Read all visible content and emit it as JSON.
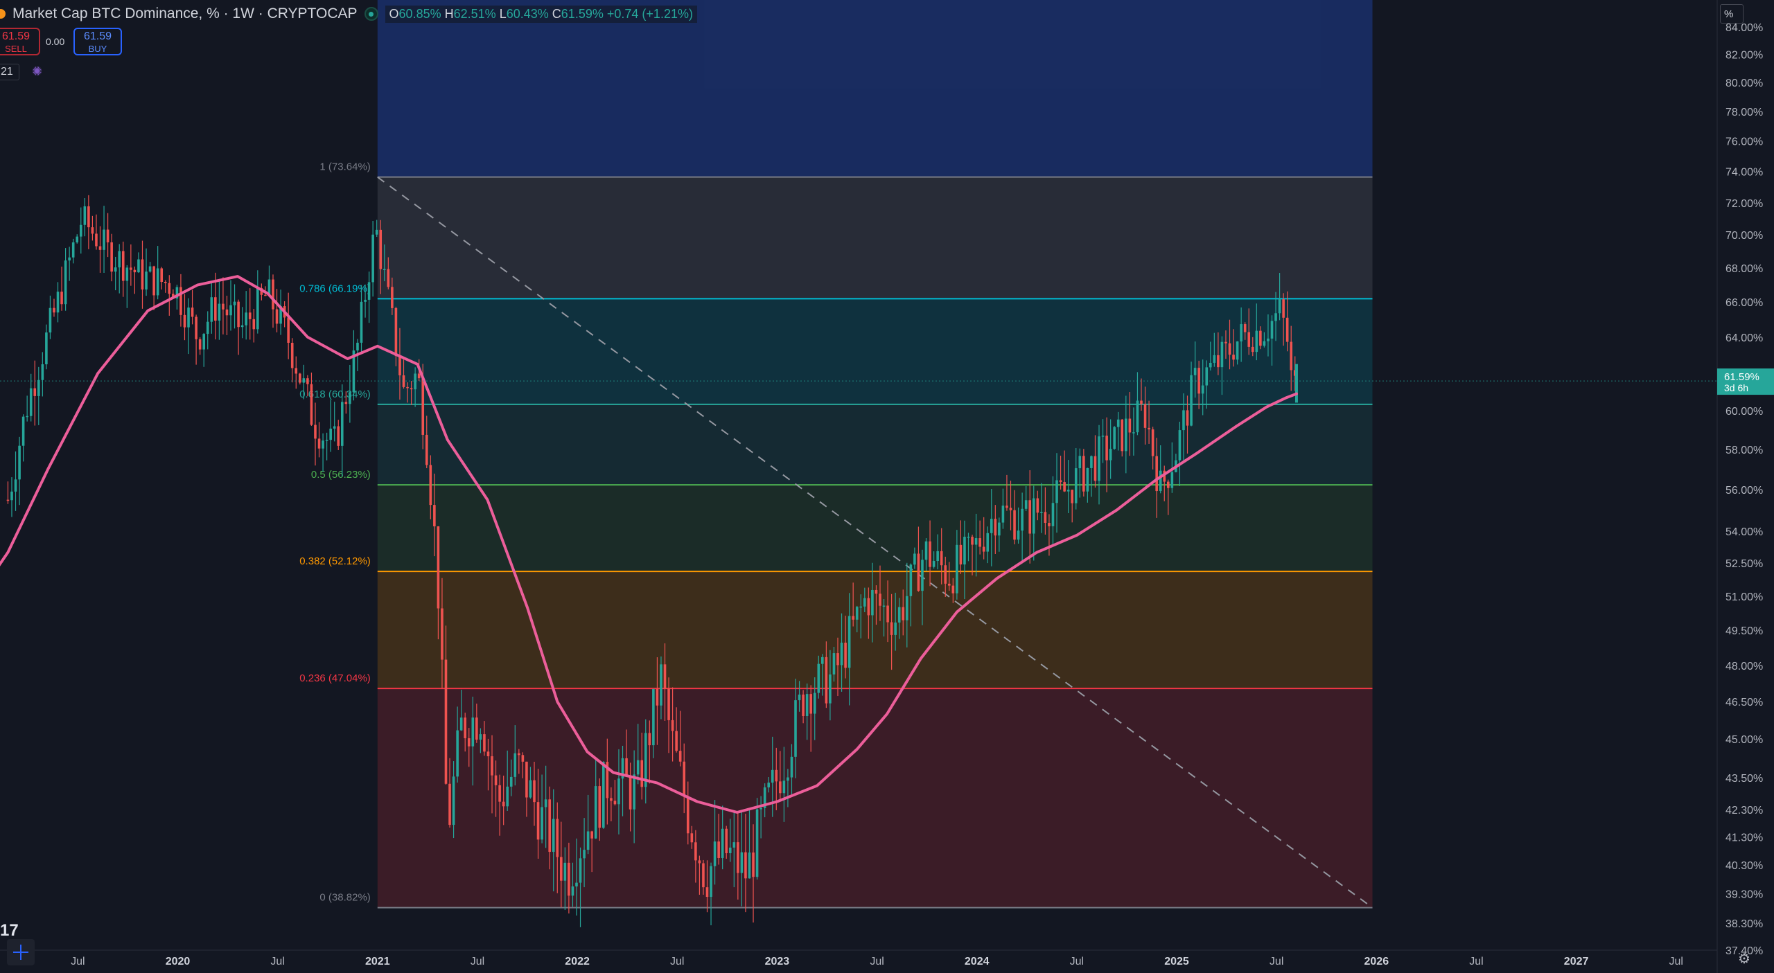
{
  "header": {
    "symbol_title": "Market Cap BTC Dominance, % · 1W · CRYPTOCAP",
    "ohlc": {
      "o_label": "O",
      "o": "60.85%",
      "h_label": "H",
      "h": "62.51%",
      "l_label": "L",
      "l": "60.43%",
      "c_label": "C",
      "c": "61.59%",
      "change": "+0.74 (+1.21%)"
    },
    "sell_price": "61.59",
    "sell_label": "SELL",
    "spread": "0.00",
    "buy_price": "61.59",
    "buy_label": "BUY",
    "indicator_value": "21",
    "scale_mode": "%"
  },
  "price_badge": {
    "value": "61.59%",
    "countdown": "3d 6h"
  },
  "colors": {
    "up": "#26a69a",
    "down": "#ef5350",
    "ma": "#ec5e9a",
    "price_line": "#26a69a"
  },
  "chart_data": {
    "type": "candlestick",
    "timeframe": "1W",
    "ylim": [
      37.4,
      86.0
    ],
    "y_scale": "log",
    "y_ticks": [
      "84.00%",
      "82.00%",
      "80.00%",
      "78.00%",
      "76.00%",
      "74.00%",
      "72.00%",
      "70.00%",
      "68.00%",
      "66.00%",
      "64.00%",
      "62.00%",
      "60.00%",
      "58.00%",
      "56.00%",
      "54.00%",
      "52.50%",
      "51.00%",
      "49.50%",
      "48.00%",
      "46.50%",
      "45.00%",
      "43.50%",
      "42.30%",
      "41.30%",
      "40.30%",
      "39.30%",
      "38.30%",
      "37.40%"
    ],
    "x_ticks": [
      {
        "label": "Jul",
        "t": 2019.5
      },
      {
        "label": "2020",
        "t": 2020.0
      },
      {
        "label": "Jul",
        "t": 2020.5
      },
      {
        "label": "2021",
        "t": 2021.0
      },
      {
        "label": "Jul",
        "t": 2021.5
      },
      {
        "label": "2022",
        "t": 2022.0
      },
      {
        "label": "Jul",
        "t": 2022.5
      },
      {
        "label": "2023",
        "t": 2023.0
      },
      {
        "label": "Jul",
        "t": 2023.5
      },
      {
        "label": "2024",
        "t": 2024.0
      },
      {
        "label": "Jul",
        "t": 2024.5
      },
      {
        "label": "2025",
        "t": 2025.0
      },
      {
        "label": "Jul",
        "t": 2025.5
      },
      {
        "label": "2026",
        "t": 2026.0
      },
      {
        "label": "Jul",
        "t": 2026.5
      },
      {
        "label": "2027",
        "t": 2027.0
      },
      {
        "label": "Jul",
        "t": 2027.5
      }
    ],
    "price_path": [
      [
        2019.15,
        55.5
      ],
      [
        2019.25,
        60.5
      ],
      [
        2019.4,
        66.0
      ],
      [
        2019.52,
        71.0
      ],
      [
        2019.65,
        69.0
      ],
      [
        2019.82,
        67.5
      ],
      [
        2019.98,
        67.0
      ],
      [
        2020.1,
        64.0
      ],
      [
        2020.2,
        66.0
      ],
      [
        2020.32,
        64.5
      ],
      [
        2020.45,
        66.5
      ],
      [
        2020.55,
        64.0
      ],
      [
        2020.68,
        59.5
      ],
      [
        2020.78,
        58.0
      ],
      [
        2020.9,
        63.5
      ],
      [
        2020.99,
        70.5
      ],
      [
        2021.04,
        67.0
      ],
      [
        2021.13,
        61.0
      ],
      [
        2021.2,
        62.0
      ],
      [
        2021.25,
        58.0
      ],
      [
        2021.3,
        52.0
      ],
      [
        2021.35,
        41.5
      ],
      [
        2021.42,
        45.5
      ],
      [
        2021.52,
        46.0
      ],
      [
        2021.6,
        42.5
      ],
      [
        2021.7,
        44.0
      ],
      [
        2021.82,
        42.0
      ],
      [
        2021.95,
        40.0
      ],
      [
        2022.04,
        41.5
      ],
      [
        2022.16,
        43.5
      ],
      [
        2022.3,
        43.0
      ],
      [
        2022.42,
        47.5
      ],
      [
        2022.47,
        45.0
      ],
      [
        2022.56,
        42.0
      ],
      [
        2022.64,
        40.0
      ],
      [
        2022.74,
        40.8
      ],
      [
        2022.85,
        40.0
      ],
      [
        2022.95,
        42.5
      ],
      [
        2023.05,
        44.5
      ],
      [
        2023.14,
        47.0
      ],
      [
        2023.28,
        47.5
      ],
      [
        2023.45,
        51.0
      ],
      [
        2023.6,
        50.0
      ],
      [
        2023.74,
        53.0
      ],
      [
        2023.86,
        52.0
      ],
      [
        2023.98,
        53.0
      ],
      [
        2024.1,
        55.0
      ],
      [
        2024.22,
        54.5
      ],
      [
        2024.4,
        55.5
      ],
      [
        2024.55,
        57.0
      ],
      [
        2024.7,
        58.5
      ],
      [
        2024.84,
        60.0
      ],
      [
        2024.92,
        56.0
      ],
      [
        2025.0,
        58.0
      ],
      [
        2025.09,
        61.5
      ],
      [
        2025.2,
        62.5
      ],
      [
        2025.32,
        64.0
      ],
      [
        2025.45,
        64.5
      ],
      [
        2025.52,
        65.5
      ],
      [
        2025.56,
        63.5
      ],
      [
        2025.58,
        60.8
      ],
      [
        2025.6,
        61.59
      ]
    ],
    "moving_average": [
      [
        2019.0,
        51.0
      ],
      [
        2019.15,
        53.0
      ],
      [
        2019.35,
        57.0
      ],
      [
        2019.6,
        62.0
      ],
      [
        2019.85,
        65.5
      ],
      [
        2020.1,
        67.0
      ],
      [
        2020.3,
        67.5
      ],
      [
        2020.45,
        66.5
      ],
      [
        2020.65,
        64.0
      ],
      [
        2020.85,
        62.8
      ],
      [
        2021.0,
        63.5
      ],
      [
        2021.2,
        62.5
      ],
      [
        2021.35,
        58.5
      ],
      [
        2021.55,
        55.5
      ],
      [
        2021.75,
        50.5
      ],
      [
        2021.9,
        46.5
      ],
      [
        2022.05,
        44.5
      ],
      [
        2022.18,
        43.7
      ],
      [
        2022.4,
        43.3
      ],
      [
        2022.6,
        42.6
      ],
      [
        2022.8,
        42.2
      ],
      [
        2023.0,
        42.6
      ],
      [
        2023.2,
        43.2
      ],
      [
        2023.4,
        44.6
      ],
      [
        2023.55,
        46.0
      ],
      [
        2023.72,
        48.3
      ],
      [
        2023.9,
        50.3
      ],
      [
        2024.1,
        51.8
      ],
      [
        2024.3,
        53.0
      ],
      [
        2024.5,
        53.8
      ],
      [
        2024.7,
        55.0
      ],
      [
        2024.9,
        56.5
      ],
      [
        2025.1,
        57.8
      ],
      [
        2025.3,
        59.2
      ],
      [
        2025.45,
        60.2
      ],
      [
        2025.55,
        60.7
      ],
      [
        2025.6,
        60.9
      ]
    ],
    "fibonacci": {
      "start_t": 2021.0,
      "end_t": 2025.98,
      "levels": [
        {
          "ratio": 1.0,
          "label": "1 (73.64%)",
          "value": 73.64,
          "color": "#787b86",
          "fill": "rgba(120,123,134,0.22)"
        },
        {
          "ratio": 0.786,
          "label": "0.786 (66.19%)",
          "value": 66.19,
          "color": "#00bcd4",
          "fill": "rgba(0,188,212,0.16)"
        },
        {
          "ratio": 0.618,
          "label": "0.618 (60.34%)",
          "value": 60.34,
          "color": "#26a69a",
          "fill": "rgba(38,166,154,0.14)"
        },
        {
          "ratio": 0.5,
          "label": "0.5 (56.23%)",
          "value": 56.23,
          "color": "#4caf50",
          "fill": "rgba(76,175,80,0.14)"
        },
        {
          "ratio": 0.382,
          "label": "0.382 (52.12%)",
          "value": 52.12,
          "color": "#ff9800",
          "fill": "rgba(255,152,0,0.18)"
        },
        {
          "ratio": 0.236,
          "label": "0.236 (47.04%)",
          "value": 47.04,
          "color": "#f23645",
          "fill": "rgba(242,54,69,0.18)"
        },
        {
          "ratio": 0.0,
          "label": "0 (38.82%)",
          "value": 38.82,
          "color": "#787b86",
          "fill": "rgba(0,0,0,0)"
        }
      ],
      "extension_fill": "rgba(41,98,255,0.28)",
      "trend_line": {
        "from": [
          2021.0,
          73.64
        ],
        "to": [
          2025.98,
          38.82
        ]
      }
    },
    "last_price": 61.59
  }
}
